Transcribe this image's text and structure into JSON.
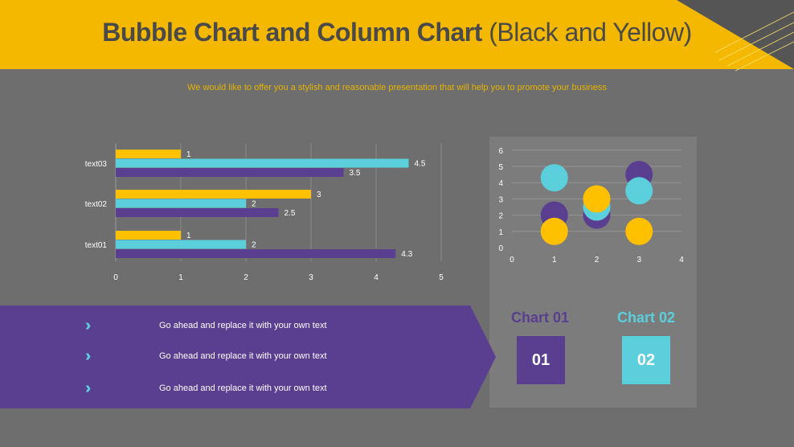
{
  "title": {
    "bold": "Bubble Chart and Column Chart",
    "light": "(Black and Yellow)"
  },
  "subtitle": "We would like to offer you a stylish and reasonable presentation that will help you to promote your business",
  "colors": {
    "yellow": "#ffc000",
    "cyan": "#5ccfdc",
    "purple": "#5a3e8f",
    "background": "#6e6e6e"
  },
  "chart_data": [
    {
      "type": "bar",
      "orientation": "horizontal",
      "categories": [
        "text01",
        "text02",
        "text03"
      ],
      "series": [
        {
          "values": [
            1,
            3,
            1
          ],
          "color": "#ffc000"
        },
        {
          "values": [
            2,
            2,
            4.5
          ],
          "color": "#5ccfdc"
        },
        {
          "values": [
            4.3,
            2.5,
            3.5
          ],
          "color": "#5a3e8f"
        }
      ],
      "xlim": [
        0,
        5
      ],
      "xticks": [
        "0",
        "1",
        "2",
        "3",
        "4",
        "5"
      ],
      "grid": "vertical",
      "data_labels": true
    },
    {
      "type": "scatter",
      "subtype": "bubble",
      "xlim": [
        0,
        4
      ],
      "ylim": [
        0,
        6
      ],
      "xticks": [
        "0",
        "1",
        "2",
        "3",
        "4"
      ],
      "yticks": [
        "0",
        "1",
        "2",
        "3",
        "4",
        "5",
        "6"
      ],
      "grid": "horizontal",
      "series": [
        {
          "color": "#5a3e8f",
          "points": [
            [
              1,
              2
            ],
            [
              2,
              2
            ],
            [
              3,
              4.5
            ]
          ]
        },
        {
          "color": "#5ccfdc",
          "points": [
            [
              1,
              4.3
            ],
            [
              2,
              2.5
            ],
            [
              3,
              3.5
            ]
          ]
        },
        {
          "color": "#ffc000",
          "points": [
            [
              1,
              1
            ],
            [
              2,
              3
            ],
            [
              3,
              1
            ]
          ]
        }
      ]
    }
  ],
  "banner": {
    "items": [
      "Go ahead and replace it with your own text",
      "Go ahead and replace it with your own text",
      "Go ahead and replace it with your own text"
    ],
    "icon": "double-chevron-right-icon"
  },
  "legend_cards": [
    {
      "label": "Chart 01",
      "number": "01"
    },
    {
      "label": "Chart 02",
      "number": "02"
    }
  ]
}
